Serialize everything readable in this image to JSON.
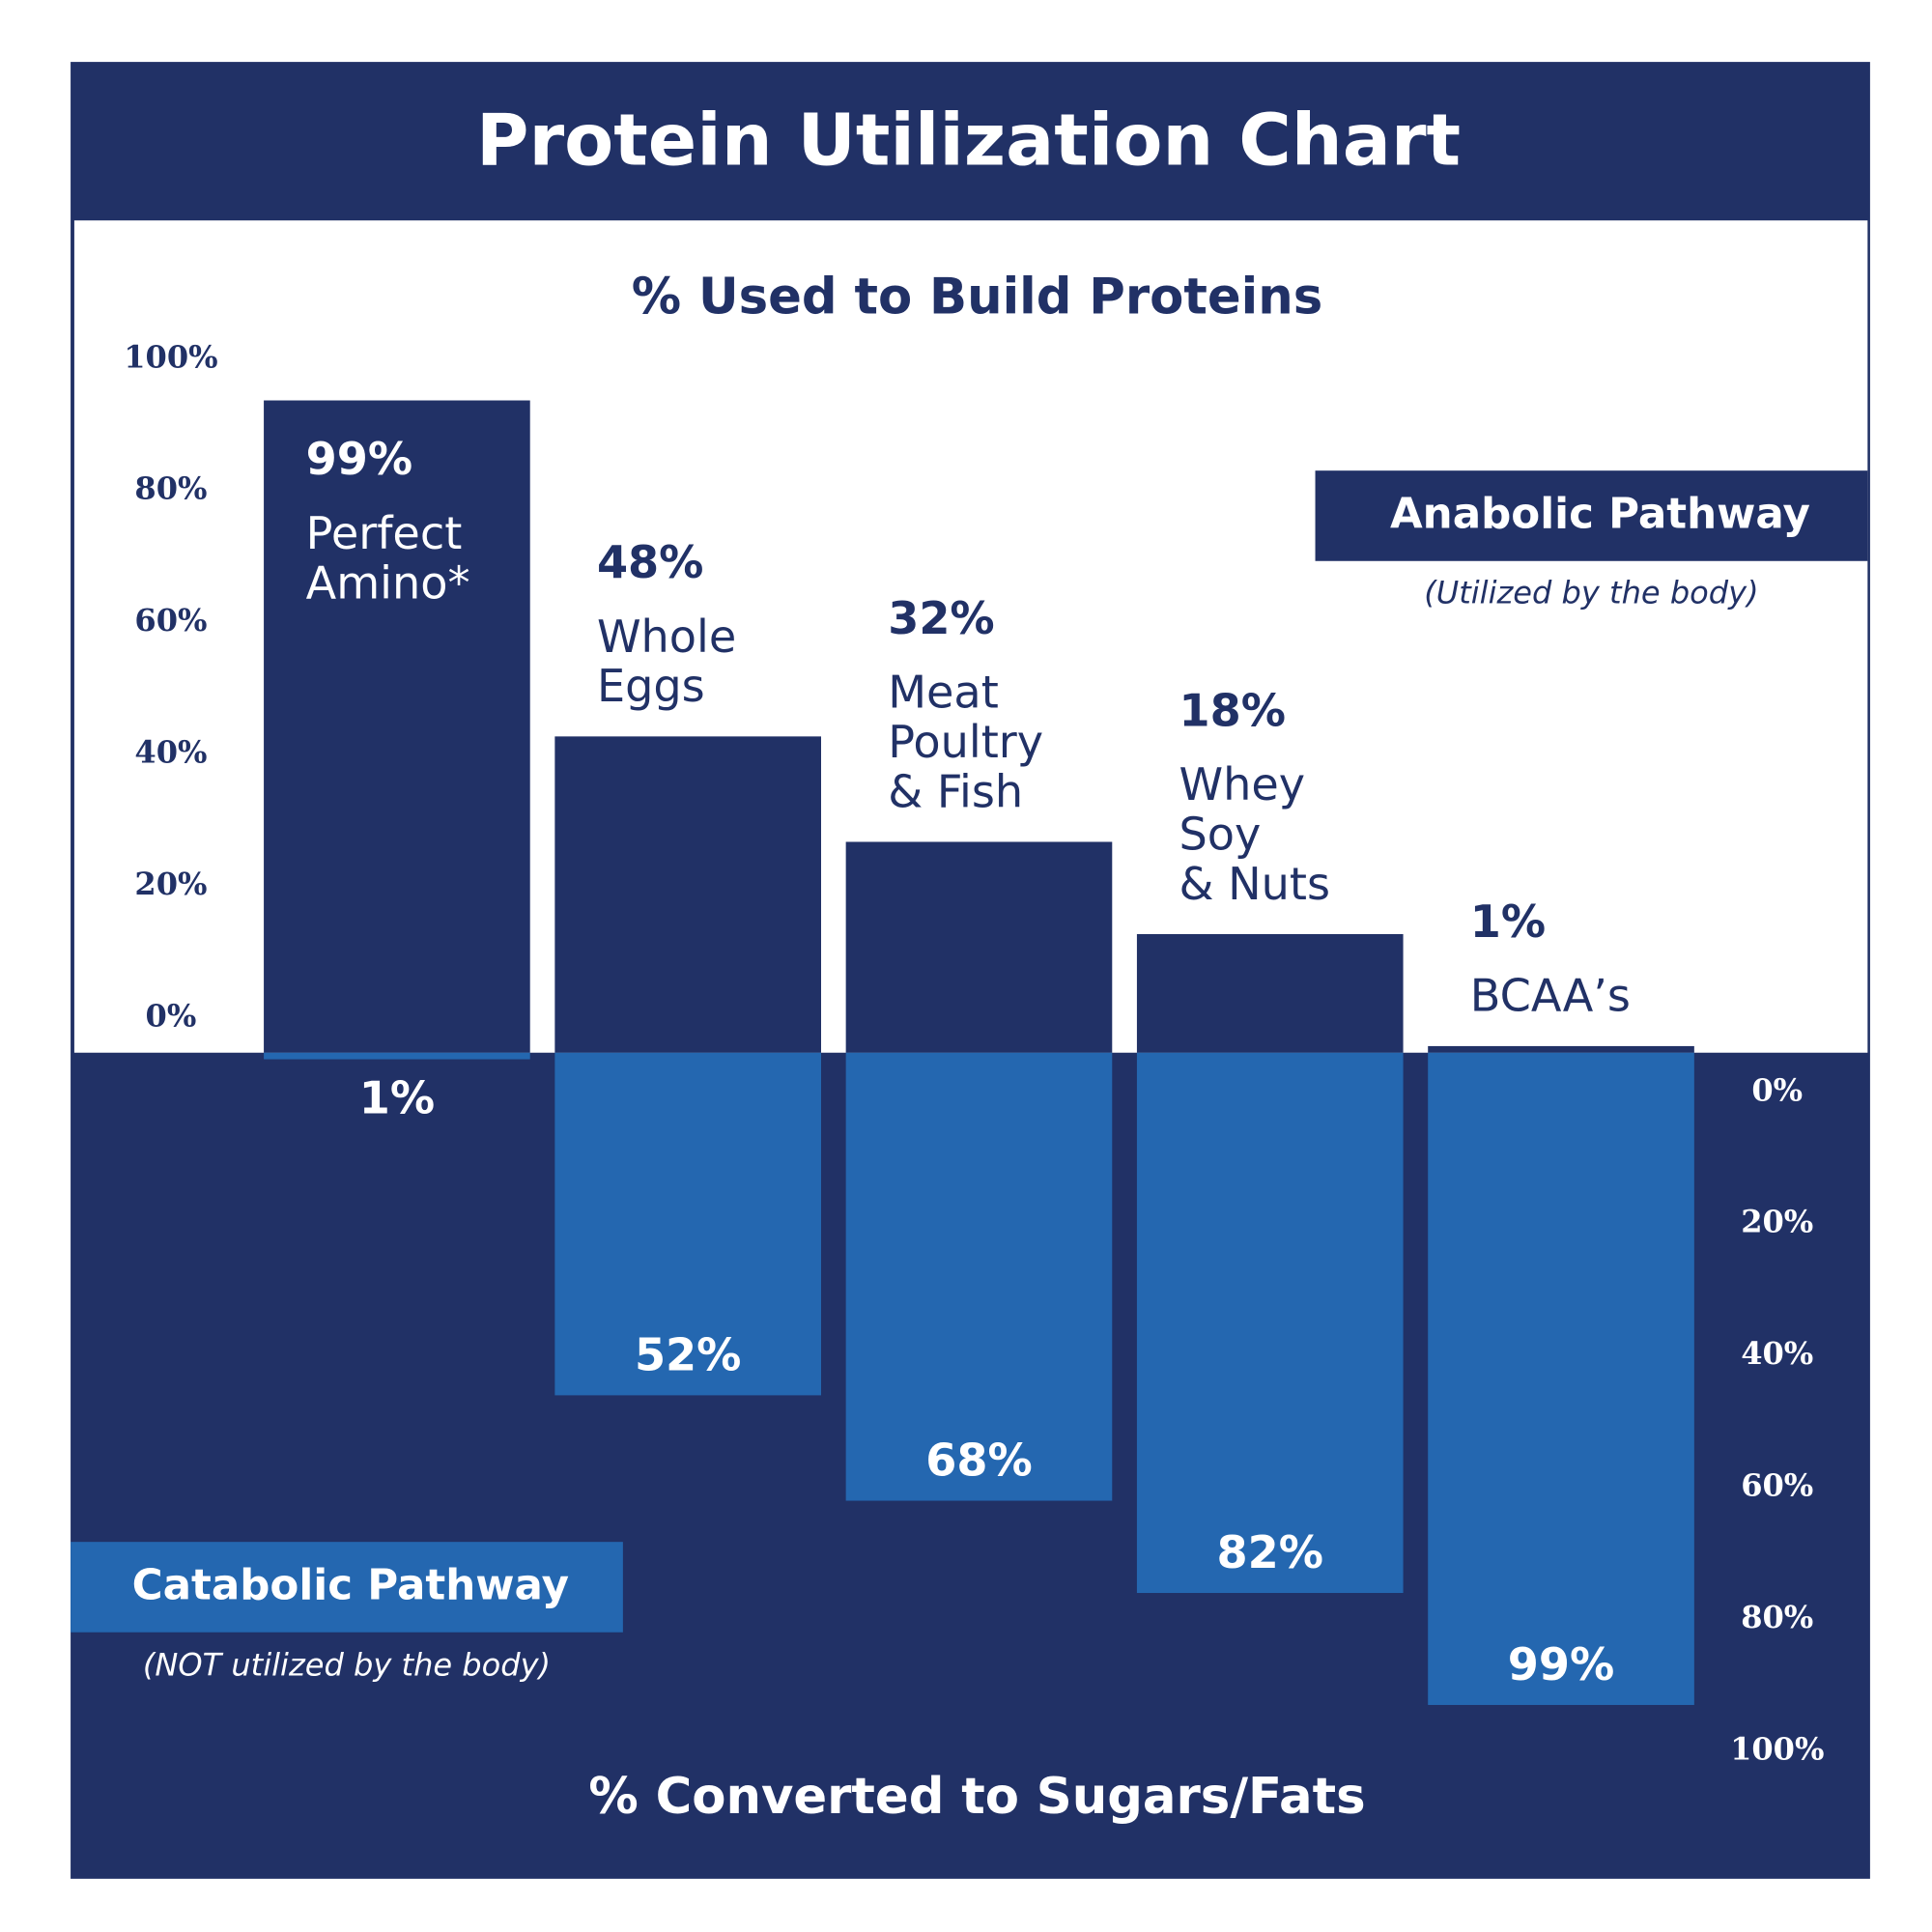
{
  "chart_data": {
    "type": "diverging-bar",
    "title": "Protein Utilization Chart",
    "categories": [
      [
        "Perfect",
        "Amino*"
      ],
      [
        "Whole",
        "Eggs"
      ],
      [
        "Meat",
        "Poultry",
        "& Fish"
      ],
      [
        "Whey",
        "Soy",
        "& Nuts"
      ],
      [
        "BCAA’s"
      ]
    ],
    "ylabel": "% Used to Build Proteins",
    "y2label": "% Converted to Sugars/Fats",
    "series": [
      {
        "name": "Anabolic Pathway",
        "note": "(Utilized by the body)",
        "color": "#213166",
        "values": [
          99,
          48,
          32,
          18,
          1
        ],
        "value_labels": [
          "99%",
          "48%",
          "32%",
          "18%",
          "1%"
        ]
      },
      {
        "name": "Catabolic Pathway",
        "note": "(NOT utilized by the body)",
        "color": "#2467b0",
        "axis": "y2",
        "values": [
          1,
          52,
          68,
          82,
          99
        ],
        "value_labels": [
          "1%",
          "52%",
          "68%",
          "82%",
          "99%"
        ]
      }
    ],
    "ylim": [
      0,
      100
    ],
    "yticks": [
      {
        "value": 0,
        "label": "0%"
      },
      {
        "value": 20,
        "label": "20%"
      },
      {
        "value": 40,
        "label": "40%"
      },
      {
        "value": 60,
        "label": "60%"
      },
      {
        "value": 80,
        "label": "80%"
      },
      {
        "value": 100,
        "label": "100%"
      }
    ],
    "y2lim": [
      0,
      100
    ],
    "y2ticks": [
      {
        "value": 0,
        "label": "0%"
      },
      {
        "value": 20,
        "label": "20%"
      },
      {
        "value": 40,
        "label": "40%"
      },
      {
        "value": 60,
        "label": "60%"
      },
      {
        "value": 80,
        "label": "80%"
      },
      {
        "value": 100,
        "label": "100%"
      }
    ]
  }
}
